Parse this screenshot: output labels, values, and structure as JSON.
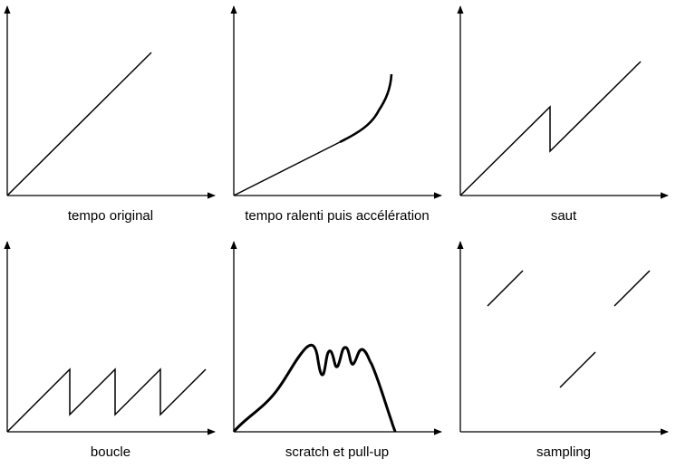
{
  "panels": [
    {
      "id": "tempo-original",
      "caption": "tempo original"
    },
    {
      "id": "tempo-ralenti",
      "caption": "tempo ralenti puis accélération"
    },
    {
      "id": "saut",
      "caption": "saut"
    },
    {
      "id": "boucle",
      "caption": "boucle"
    },
    {
      "id": "scratch",
      "caption": "scratch et pull-up"
    },
    {
      "id": "sampling",
      "caption": "sampling"
    }
  ],
  "colors": {
    "line": "#000000",
    "background": "#ffffff"
  }
}
